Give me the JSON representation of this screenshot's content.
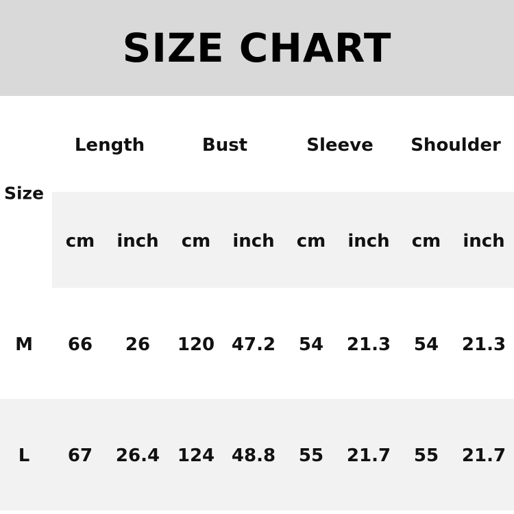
{
  "title": "SIZE CHART",
  "size_header": "Size",
  "groups": [
    "Length",
    "Bust",
    "Sleeve",
    "Shoulder"
  ],
  "units": [
    "cm",
    "inch",
    "cm",
    "inch",
    "cm",
    "inch",
    "cm",
    "inch"
  ],
  "rows": [
    {
      "size": "M",
      "values": [
        "66",
        "26",
        "120",
        "47.2",
        "54",
        "21.3",
        "54",
        "21.3"
      ]
    },
    {
      "size": "L",
      "values": [
        "67",
        "26.4",
        "124",
        "48.8",
        "55",
        "21.7",
        "55",
        "21.7"
      ]
    }
  ],
  "colors": {
    "header_band": "#d9d9d9",
    "stripe": "#f2f2f2",
    "text": "#111111"
  }
}
